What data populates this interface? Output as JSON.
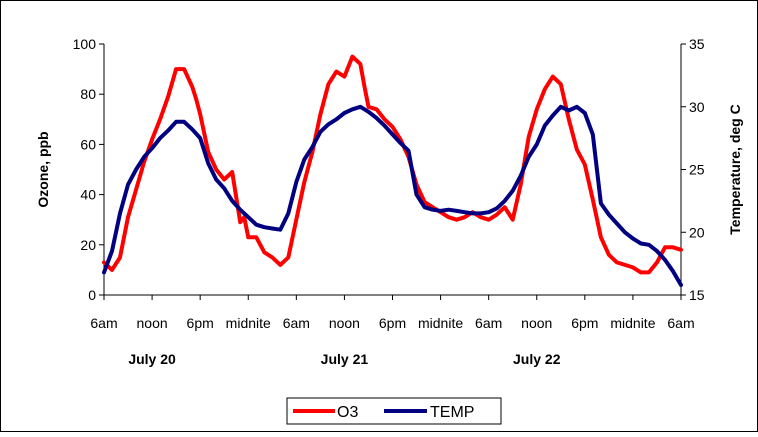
{
  "chart_data": {
    "type": "line",
    "title": "",
    "xlabel": "",
    "ylabel": "Ozone, ppb",
    "y2label": "Temperature, deg C",
    "ylim": [
      0,
      100
    ],
    "y2lim": [
      15,
      35
    ],
    "yticks": [
      "0",
      "20",
      "40",
      "60",
      "80",
      "100"
    ],
    "y2ticks": [
      "15",
      "20",
      "25",
      "30",
      "35"
    ],
    "x_tick_labels": [
      "6am",
      "noon",
      "6pm",
      "midnite",
      "6am",
      "noon",
      "6pm",
      "midnite",
      "6am",
      "noon",
      "6pm",
      "midnite",
      "6am"
    ],
    "day_labels": [
      "July 20",
      "July 21",
      "July 22"
    ],
    "legend_position": "bottom",
    "grid": false,
    "x_unit": "hours since 6am July 20",
    "series": [
      {
        "name": "O3",
        "axis": "left",
        "color": "#ff0000",
        "x": [
          0,
          1,
          2,
          3,
          4,
          5,
          6,
          7,
          8,
          9,
          10,
          11,
          11.5,
          12,
          13,
          14,
          15,
          16,
          17,
          17.5,
          18,
          19,
          20,
          21,
          22,
          23,
          24,
          25,
          26,
          27,
          28,
          29,
          30,
          31,
          32,
          32.5,
          33,
          34,
          35,
          36,
          37,
          38,
          39,
          40,
          41,
          42,
          43,
          44,
          45,
          46,
          47,
          48,
          49,
          50,
          51,
          52,
          53,
          54,
          55,
          56,
          57,
          58,
          59,
          60,
          61,
          62,
          63,
          64,
          65,
          66,
          67,
          68,
          69,
          70,
          71,
          72
        ],
        "values": [
          13,
          10,
          15,
          31,
          42,
          53,
          62,
          70,
          79,
          90,
          90,
          83,
          78,
          72,
          57,
          50,
          46,
          49,
          29,
          31,
          23,
          23,
          17,
          15,
          12,
          15,
          30,
          45,
          57,
          72,
          84,
          89,
          87,
          95,
          92,
          83,
          75,
          74,
          70,
          67,
          62,
          55,
          44,
          37,
          35,
          33,
          31,
          30,
          31,
          33,
          31,
          30,
          32,
          35,
          30,
          44,
          63,
          74,
          82,
          87,
          84,
          70,
          58,
          52,
          38,
          23,
          16,
          13,
          12,
          11,
          9,
          9,
          13,
          19,
          19,
          18
        ],
        "note_values_ppb": true
      },
      {
        "name": "TEMP",
        "axis": "right",
        "color": "#000080",
        "x": [
          0,
          1,
          2,
          3,
          4,
          5,
          6,
          7,
          8,
          9,
          10,
          11,
          12,
          13,
          14,
          15,
          16,
          17,
          18,
          19,
          20,
          21,
          22,
          23,
          24,
          25,
          26,
          27,
          28,
          29,
          30,
          31,
          32,
          33,
          34,
          35,
          36,
          37,
          38,
          39,
          40,
          41,
          42,
          43,
          44,
          45,
          46,
          47,
          48,
          49,
          50,
          51,
          52,
          53,
          54,
          55,
          56,
          57,
          58,
          59,
          60,
          61,
          62,
          63,
          64,
          65,
          66,
          67,
          68,
          69,
          70,
          71,
          72
        ],
        "values": [
          16.8,
          18.5,
          21.5,
          23.8,
          25.0,
          26.0,
          26.7,
          27.5,
          28.1,
          28.8,
          28.8,
          28.2,
          27.5,
          25.5,
          24.2,
          23.5,
          22.5,
          21.8,
          21.2,
          20.6,
          20.4,
          20.3,
          20.2,
          21.5,
          24.0,
          25.8,
          26.8,
          28.0,
          28.6,
          29.0,
          29.5,
          29.8,
          30.0,
          29.6,
          29.1,
          28.5,
          27.8,
          27.1,
          26.5,
          23.0,
          22.0,
          21.8,
          21.7,
          21.8,
          21.7,
          21.6,
          21.5,
          21.5,
          21.6,
          21.9,
          22.5,
          23.3,
          24.5,
          26.0,
          27.0,
          28.5,
          29.3,
          30.0,
          29.7,
          30.0,
          29.5,
          27.8,
          22.3,
          21.4,
          20.7,
          20.0,
          19.5,
          19.1,
          19.0,
          18.5,
          17.8,
          16.9,
          15.8
        ],
        "note_values_degC": true
      }
    ]
  }
}
